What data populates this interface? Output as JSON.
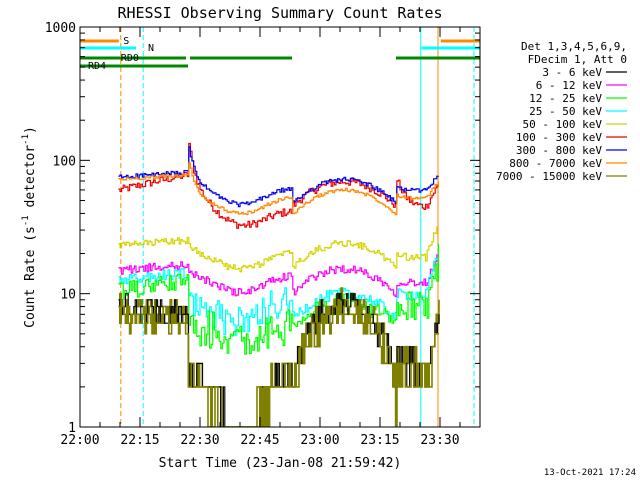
{
  "chart_data": {
    "type": "line",
    "title": "RHESSI Observing Summary Count Rates",
    "xlabel": "Start Time (23-Jan-08 21:59:42)",
    "ylabel_main": "Count Rate (s",
    "ylabel_exp1": "-1",
    "ylabel_mid": " detector",
    "ylabel_exp2": "-1",
    "ylabel_end": ")",
    "y_scale": "log",
    "ylim": [
      1,
      1000
    ],
    "xlim_minutes": [
      0,
      100
    ],
    "x_ticks": [
      {
        "minute": 0,
        "label": "22:00"
      },
      {
        "minute": 15,
        "label": "22:15"
      },
      {
        "minute": 30,
        "label": "22:30"
      },
      {
        "minute": 45,
        "label": "22:45"
      },
      {
        "minute": 60,
        "label": "23:00"
      },
      {
        "minute": 75,
        "label": "23:15"
      },
      {
        "minute": 90,
        "label": "23:30"
      }
    ],
    "y_ticks": [
      {
        "value": 1,
        "label": "1"
      },
      {
        "value": 10,
        "label": "10"
      },
      {
        "value": 100,
        "label": "100"
      },
      {
        "value": 1000,
        "label": "1000"
      }
    ],
    "legend_position": "right",
    "legend_header": [
      "Det 1,3,4,5,6,9,",
      "FDecim 1, Att 0"
    ],
    "series": [
      {
        "name": "3 - 6 keV",
        "color": "#000000"
      },
      {
        "name": "6 - 12 keV",
        "color": "#ff00ff"
      },
      {
        "name": "12 - 25 keV",
        "color": "#00ff00"
      },
      {
        "name": "25 - 50 keV",
        "color": "#00ffff"
      },
      {
        "name": "50 - 100 keV",
        "color": "#d4d400"
      },
      {
        "name": "100 - 300 keV",
        "color": "#ee0000"
      },
      {
        "name": "300 - 800 keV",
        "color": "#0000ee"
      },
      {
        "name": "800 - 7000 keV",
        "color": "#ff8800"
      },
      {
        "name": "7000 - 15000 keV",
        "color": "#808000"
      }
    ],
    "flag_bars": [
      {
        "label": "S",
        "color": "#ff8800"
      },
      {
        "label": "N",
        "color": "#00ffff"
      },
      {
        "label": "RD0",
        "color": "#008800"
      },
      {
        "label": "RD4",
        "color": "#008800"
      }
    ],
    "timestamp": "13-Oct-2021 17:24"
  }
}
